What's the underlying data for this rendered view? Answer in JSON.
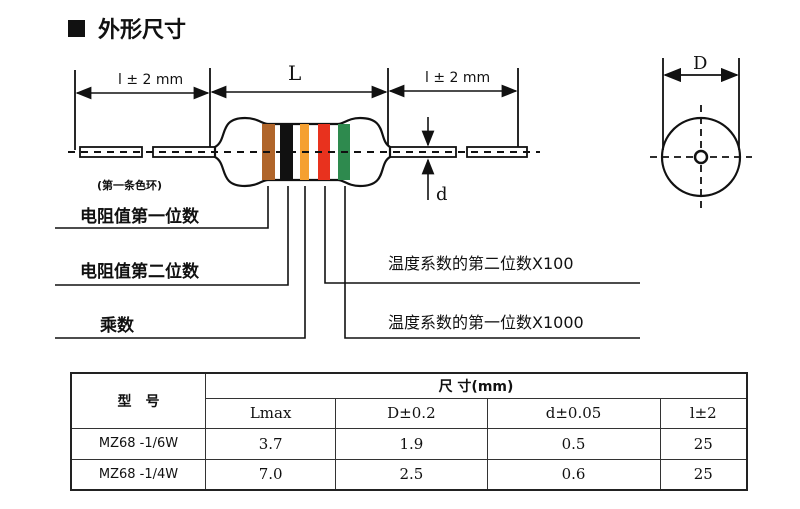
{
  "title": "外形尺寸",
  "diagram": {
    "lead_length_label_left": "l ± 2 mm",
    "body_length_label": "L",
    "lead_length_label_right": "l ± 2 mm",
    "lead_diameter_label": "d",
    "body_diameter_label": "D",
    "first_band_note": "(第一条色环)",
    "band_colors": [
      "#b0652a",
      "#111111",
      "#f5a031",
      "#e8321e",
      "#2e8a4e"
    ],
    "callouts": {
      "digit1": "电阻值第一位数",
      "digit2": "电阻值第二位数",
      "multiplier": "乘数",
      "tc_second": "温度系数的第二位数X100",
      "tc_first": "温度系数的第一位数X1000"
    }
  },
  "table": {
    "model_header": "型　号",
    "dims_header": "尺 寸(mm)",
    "columns": [
      "Lmax",
      "D±0.2",
      "d±0.05",
      "l±2"
    ],
    "rows": [
      {
        "model": "MZ68 -1/6W",
        "values": [
          "3.7",
          "1.9",
          "0.5",
          "25"
        ]
      },
      {
        "model": "MZ68 -1/4W",
        "values": [
          "7.0",
          "2.5",
          "0.6",
          "25"
        ]
      }
    ]
  }
}
